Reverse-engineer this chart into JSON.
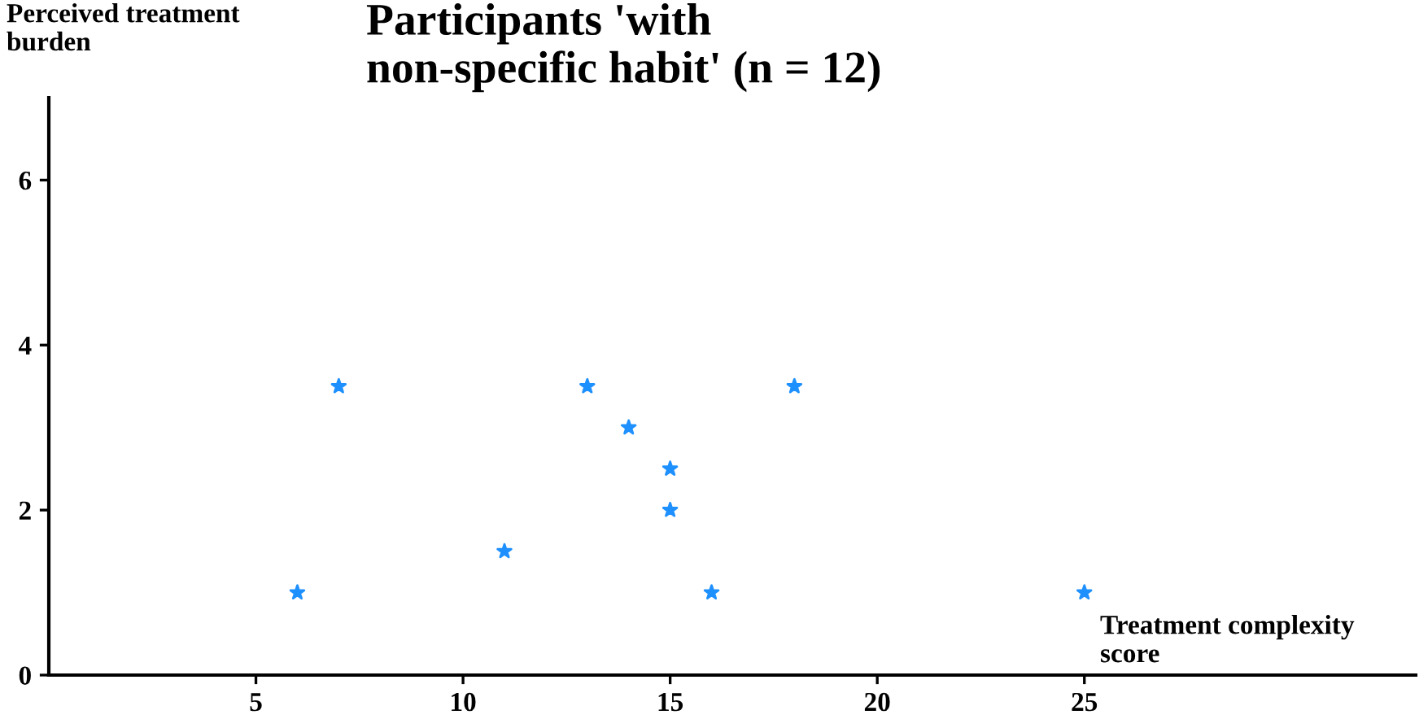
{
  "chart_data": {
    "type": "scatter",
    "title": "Participants 'with\nnon-specific habit' (n = 12)",
    "xlabel": "Treatment complexity\nscore",
    "ylabel": "Perceived treatment\nburden",
    "x": [
      6,
      7,
      11,
      13,
      14,
      15,
      15,
      16,
      18,
      25
    ],
    "values": [
      1,
      3.5,
      1.5,
      3.5,
      3,
      2.5,
      2,
      1,
      3.5,
      1
    ],
    "color": "#1e90ff",
    "marker": "star",
    "xlim": [
      0,
      33
    ],
    "ylim": [
      0,
      7
    ],
    "xticks": [
      5,
      10,
      15,
      20,
      25
    ],
    "yticks": [
      0,
      2,
      4,
      6
    ],
    "grid": false,
    "legend": false
  }
}
